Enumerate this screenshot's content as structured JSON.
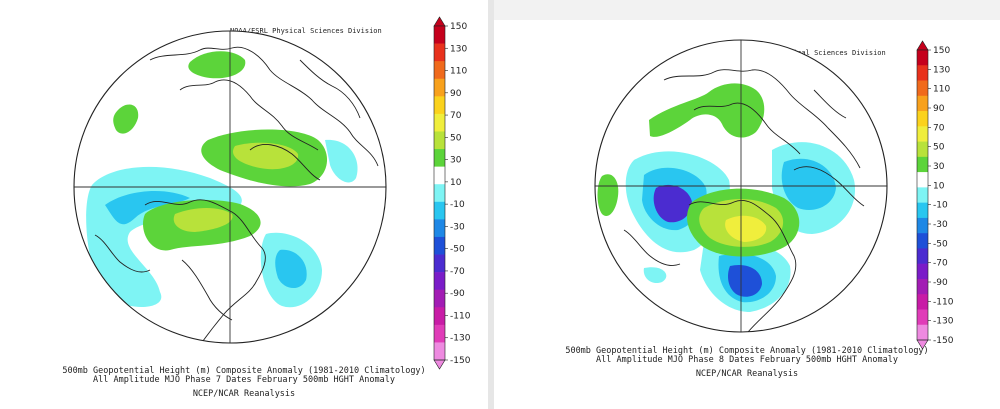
{
  "colorbar": {
    "ticks": [
      "150",
      "130",
      "110",
      "90",
      "70",
      "50",
      "30",
      "10",
      "-10",
      "-30",
      "-50",
      "-70",
      "-90",
      "-110",
      "-130",
      "-150"
    ],
    "colors": [
      "#c5001c",
      "#e8311c",
      "#f06a1c",
      "#f8a11c",
      "#fbd21c",
      "#f0ee3c",
      "#b8e23a",
      "#5cd43a",
      "#ffffff",
      "#7ef4f4",
      "#29c6f0",
      "#1e88e6",
      "#1e50d8",
      "#4b2cd0",
      "#7a1cc8",
      "#a21cb4",
      "#c81ca6",
      "#e03cb8",
      "#ee8ae0"
    ]
  },
  "left": {
    "credit": "NOAA/ESRL Physical Sciences Division",
    "title_line1": "500mb Geopotential Height (m) Composite Anomaly (1981-2010 Climatology)",
    "title_line2": "All Amplitude MJO Phase 7 Dates February 500mb HGHT Anomaly",
    "title_line3": "NCEP/NCAR Reanalysis"
  },
  "right": {
    "credit": "NOAA/ESRL Physical Sciences Division",
    "title_line1": "500mb Geopotential Height (m) Composite Anomaly (1981-2010 Climatology)",
    "title_line2": "All Amplitude MJO Phase 8 Dates February 500mb HGHT Anomaly",
    "title_line3": "NCEP/NCAR Reanalysis"
  }
}
